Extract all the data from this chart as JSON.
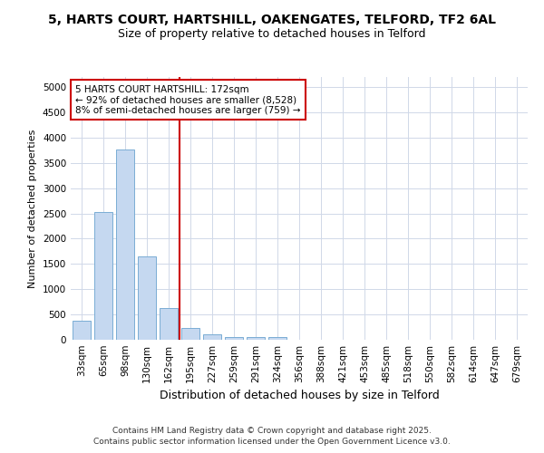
{
  "title1": "5, HARTS COURT, HARTSHILL, OAKENGATES, TELFORD, TF2 6AL",
  "title2": "Size of property relative to detached houses in Telford",
  "xlabel": "Distribution of detached houses by size in Telford",
  "ylabel": "Number of detached properties",
  "categories": [
    "33sqm",
    "65sqm",
    "98sqm",
    "130sqm",
    "162sqm",
    "195sqm",
    "227sqm",
    "259sqm",
    "291sqm",
    "324sqm",
    "356sqm",
    "388sqm",
    "421sqm",
    "453sqm",
    "485sqm",
    "518sqm",
    "550sqm",
    "582sqm",
    "614sqm",
    "647sqm",
    "679sqm"
  ],
  "values": [
    380,
    2530,
    3760,
    1650,
    620,
    230,
    105,
    55,
    50,
    50,
    0,
    0,
    0,
    0,
    0,
    0,
    0,
    0,
    0,
    0,
    0
  ],
  "bar_color": "#c5d8f0",
  "bar_edge_color": "#7aadd4",
  "vline_color": "#cc0000",
  "vline_x": 4.5,
  "annotation_text": "5 HARTS COURT HARTSHILL: 172sqm\n← 92% of detached houses are smaller (8,528)\n8% of semi-detached houses are larger (759) →",
  "annotation_box_color": "#ffffff",
  "annotation_box_edge_color": "#cc0000",
  "ylim": [
    0,
    5200
  ],
  "yticks": [
    0,
    500,
    1000,
    1500,
    2000,
    2500,
    3000,
    3500,
    4000,
    4500,
    5000
  ],
  "footer1": "Contains HM Land Registry data © Crown copyright and database right 2025.",
  "footer2": "Contains public sector information licensed under the Open Government Licence v3.0.",
  "bg_color": "#ffffff",
  "plot_bg_color": "#ffffff",
  "grid_color": "#d0d8e8",
  "title1_fontsize": 10,
  "title2_fontsize": 9,
  "ylabel_fontsize": 8,
  "xlabel_fontsize": 9,
  "tick_fontsize": 7.5,
  "footer_fontsize": 6.5
}
